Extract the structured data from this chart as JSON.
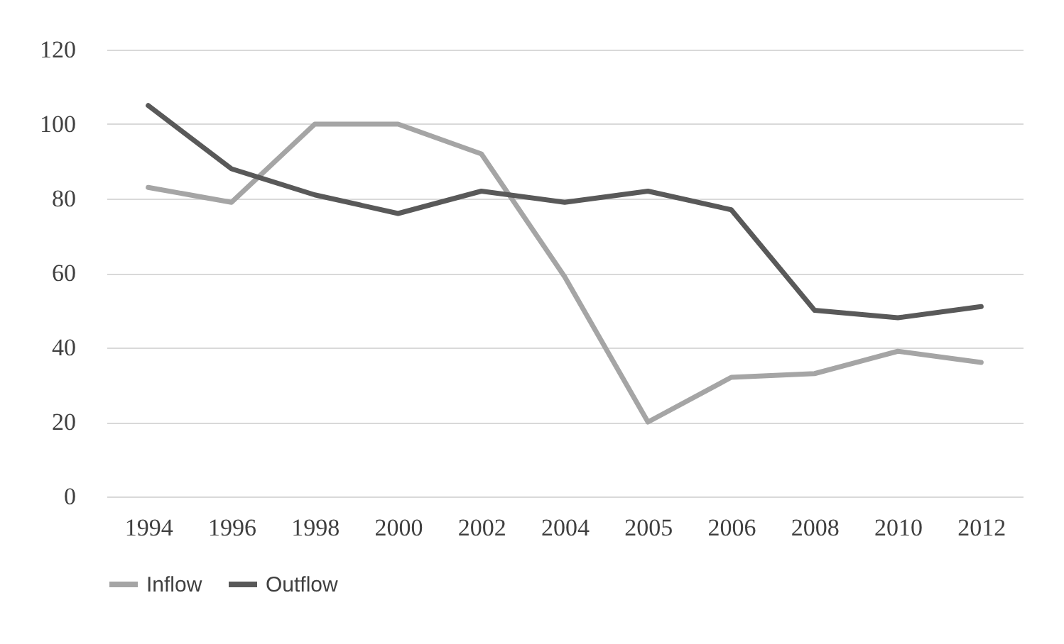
{
  "chart_data": {
    "type": "line",
    "categories": [
      "1994",
      "1996",
      "1998",
      "2000",
      "2002",
      "2004",
      "2005",
      "2006",
      "2008",
      "2010",
      "2012"
    ],
    "series": [
      {
        "name": "Inflow",
        "color": "#a5a5a5",
        "values": [
          83,
          79,
          100,
          100,
          92,
          59,
          20,
          32,
          33,
          39,
          36
        ]
      },
      {
        "name": "Outflow",
        "color": "#595959",
        "values": [
          105,
          88,
          81,
          76,
          82,
          79,
          82,
          77,
          50,
          48,
          51
        ]
      }
    ],
    "ylim": [
      0,
      120
    ],
    "yticks": [
      0,
      20,
      40,
      60,
      80,
      100,
      120
    ],
    "grid": "y",
    "legend": "bottom",
    "marker": "none",
    "line_style": "solid"
  }
}
